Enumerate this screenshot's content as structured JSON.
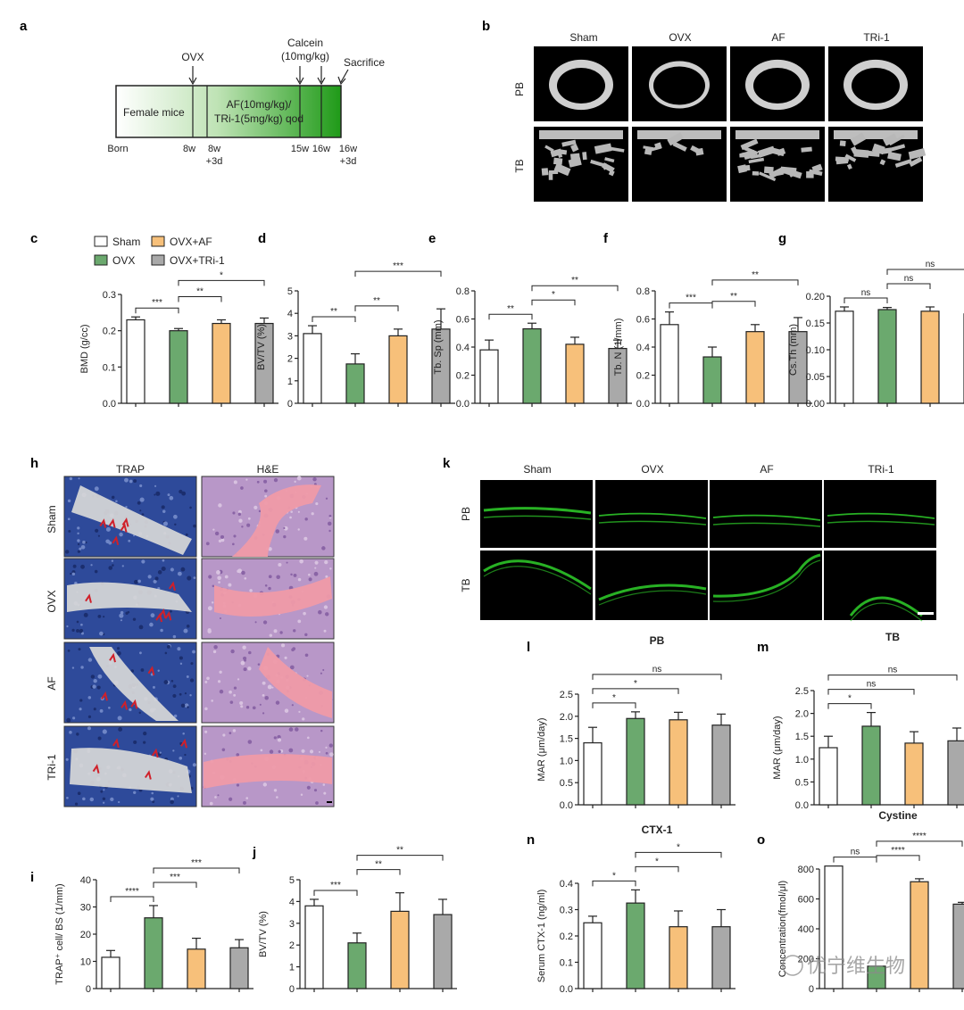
{
  "colors": {
    "sham": "#ffffff",
    "ovx": "#6ba96e",
    "af": "#f7c07a",
    "tri1": "#a9a9a9",
    "timeline_start": "#ffffff",
    "timeline_end": "#27a11f",
    "fluorescence": "#2fd02a"
  },
  "panel_labels": [
    "a",
    "b",
    "c",
    "d",
    "e",
    "f",
    "g",
    "h",
    "i",
    "j",
    "k",
    "l",
    "m",
    "n",
    "o"
  ],
  "panel_a": {
    "box_left": "Female mice",
    "box_right_line1": "AF(10mg/kg)/",
    "box_right_line2": "TRi-1(5mg/kg) qod",
    "top_ovx": "OVX",
    "top_calcein_1": "Calcein",
    "top_calcein_2": "(10mg/kg)",
    "top_sacrifice": "Sacrifice",
    "ticks": [
      "Born",
      "8w",
      "8w",
      "+3d",
      "15w",
      "16w",
      "16w",
      "+3d"
    ]
  },
  "panel_b": {
    "columns": [
      "Sham",
      "OVX",
      "AF",
      "TRi-1"
    ],
    "rows": [
      "PB",
      "TB"
    ]
  },
  "legend": [
    "Sham",
    "OVX",
    "OVX+AF",
    "OVX+TRi-1"
  ],
  "panel_h": {
    "columns": [
      "TRAP",
      "H&E"
    ],
    "rows": [
      "Sham",
      "OVX",
      "AF",
      "TRi-1"
    ]
  },
  "panel_k": {
    "columns": [
      "Sham",
      "OVX",
      "AF",
      "TRi-1"
    ],
    "rows": [
      "PB",
      "TB"
    ]
  },
  "watermark": "优宁维生物",
  "chart_data": [
    {
      "panel": "c",
      "type": "bar",
      "title": "",
      "ylabel": "BMD (g/cc)",
      "ylim": [
        0,
        0.3
      ],
      "yticks": [
        "0.0",
        "0.1",
        "0.2",
        "0.3"
      ],
      "categories": [
        "Sham",
        "OVX",
        "OVX+AF",
        "OVX+TRi-1"
      ],
      "values": [
        0.23,
        0.2,
        0.22,
        0.22
      ],
      "errors": [
        0.008,
        0.006,
        0.01,
        0.015
      ],
      "sig": [
        {
          "a": 0,
          "b": 1,
          "label": "***"
        },
        {
          "a": 1,
          "b": 2,
          "label": "**"
        },
        {
          "a": 1,
          "b": 3,
          "label": "*"
        }
      ]
    },
    {
      "panel": "d",
      "type": "bar",
      "title": "",
      "ylabel": "BV/TV (%)",
      "ylim": [
        0,
        5
      ],
      "yticks": [
        "0",
        "1",
        "2",
        "3",
        "4",
        "5"
      ],
      "categories": [
        "Sham",
        "OVX",
        "OVX+AF",
        "OVX+TRi-1"
      ],
      "values": [
        3.1,
        1.75,
        3.0,
        3.3
      ],
      "errors": [
        0.35,
        0.45,
        0.3,
        0.9
      ],
      "sig": [
        {
          "a": 0,
          "b": 1,
          "label": "**"
        },
        {
          "a": 1,
          "b": 2,
          "label": "**"
        },
        {
          "a": 1,
          "b": 3,
          "label": "***"
        }
      ]
    },
    {
      "panel": "e",
      "type": "bar",
      "title": "",
      "ylabel": "Tb. Sp (mm)",
      "ylim": [
        0,
        0.8
      ],
      "yticks": [
        "0.0",
        "0.2",
        "0.4",
        "0.6",
        "0.8"
      ],
      "categories": [
        "Sham",
        "OVX",
        "OVX+AF",
        "OVX+TRi-1"
      ],
      "values": [
        0.38,
        0.53,
        0.42,
        0.39
      ],
      "errors": [
        0.07,
        0.04,
        0.05,
        0.06
      ],
      "sig": [
        {
          "a": 0,
          "b": 1,
          "label": "**"
        },
        {
          "a": 1,
          "b": 2,
          "label": "*"
        },
        {
          "a": 1,
          "b": 3,
          "label": "**"
        }
      ]
    },
    {
      "panel": "f",
      "type": "bar",
      "title": "",
      "ylabel": "Tb. N (1/mm)",
      "ylim": [
        0,
        0.8
      ],
      "yticks": [
        "0.0",
        "0.2",
        "0.4",
        "0.6",
        "0.8"
      ],
      "categories": [
        "Sham",
        "OVX",
        "OVX+AF",
        "OVX+TRi-1"
      ],
      "values": [
        0.56,
        0.33,
        0.51,
        0.51
      ],
      "errors": [
        0.09,
        0.07,
        0.05,
        0.1
      ],
      "sig": [
        {
          "a": 0,
          "b": 1,
          "label": "***"
        },
        {
          "a": 1,
          "b": 2,
          "label": "**"
        },
        {
          "a": 1,
          "b": 3,
          "label": "**"
        }
      ]
    },
    {
      "panel": "g",
      "type": "bar",
      "title": "",
      "ylabel": "Cs.Th (mm)",
      "ylim": [
        0,
        0.2
      ],
      "yticks": [
        "0.00",
        "0.05",
        "0.10",
        "0.15",
        "0.20"
      ],
      "categories": [
        "Sham",
        "OVX",
        "OVX+AF",
        "OVX+TRi-1"
      ],
      "values": [
        0.172,
        0.175,
        0.172,
        0.167
      ],
      "errors": [
        0.008,
        0.004,
        0.008,
        0.01
      ],
      "sig": [
        {
          "a": 0,
          "b": 1,
          "label": "ns"
        },
        {
          "a": 1,
          "b": 2,
          "label": "ns"
        },
        {
          "a": 1,
          "b": 3,
          "label": "ns"
        }
      ]
    },
    {
      "panel": "i",
      "type": "bar",
      "title": "",
      "ylabel": "TRAP⁺ cell/ BS (1/mm)",
      "ylim": [
        0,
        40
      ],
      "yticks": [
        "0",
        "10",
        "20",
        "30",
        "40"
      ],
      "categories": [
        "Sham",
        "OVX",
        "OVX+AF",
        "OVX+TRi-1"
      ],
      "values": [
        11.5,
        26,
        14.5,
        15
      ],
      "errors": [
        2.5,
        4.5,
        4,
        3
      ],
      "sig": [
        {
          "a": 0,
          "b": 1,
          "label": "****"
        },
        {
          "a": 1,
          "b": 2,
          "label": "***"
        },
        {
          "a": 1,
          "b": 3,
          "label": "***"
        }
      ]
    },
    {
      "panel": "j",
      "type": "bar",
      "title": "",
      "ylabel": "BV/TV (%)",
      "ylim": [
        0,
        5
      ],
      "yticks": [
        "0",
        "1",
        "2",
        "3",
        "4",
        "5"
      ],
      "categories": [
        "Sham",
        "OVX",
        "OVX+AF",
        "OVX+TRi-1"
      ],
      "values": [
        3.8,
        2.1,
        3.55,
        3.4
      ],
      "errors": [
        0.3,
        0.45,
        0.85,
        0.7
      ],
      "sig": [
        {
          "a": 0,
          "b": 1,
          "label": "***"
        },
        {
          "a": 1,
          "b": 2,
          "label": "**"
        },
        {
          "a": 1,
          "b": 3,
          "label": "**"
        }
      ]
    },
    {
      "panel": "l",
      "type": "bar",
      "title": "PB",
      "ylabel": "MAR (μm/day)",
      "ylim": [
        0,
        2.5
      ],
      "yticks": [
        "0.0",
        "0.5",
        "1.0",
        "1.5",
        "2.0",
        "2.5"
      ],
      "categories": [
        "Sham",
        "OVX",
        "OVX+AF",
        "OVX+TRi-1"
      ],
      "values": [
        1.4,
        1.95,
        1.92,
        1.8
      ],
      "errors": [
        0.35,
        0.15,
        0.17,
        0.25
      ],
      "sig": [
        {
          "a": 0,
          "b": 1,
          "label": "*"
        },
        {
          "a": 0,
          "b": 2,
          "label": "*"
        },
        {
          "a": 0,
          "b": 3,
          "label": "ns"
        }
      ]
    },
    {
      "panel": "m",
      "type": "bar",
      "title": "TB",
      "ylabel": "MAR (μm/day)",
      "ylim": [
        0,
        2.5
      ],
      "yticks": [
        "0.0",
        "0.5",
        "1.0",
        "1.5",
        "2.0",
        "2.5"
      ],
      "categories": [
        "Sham",
        "OVX",
        "OVX+AF",
        "OVX+TRi-1"
      ],
      "values": [
        1.25,
        1.72,
        1.35,
        1.4
      ],
      "errors": [
        0.25,
        0.3,
        0.25,
        0.28
      ],
      "sig": [
        {
          "a": 0,
          "b": 1,
          "label": "*"
        },
        {
          "a": 0,
          "b": 2,
          "label": "ns"
        },
        {
          "a": 0,
          "b": 3,
          "label": "ns"
        }
      ]
    },
    {
      "panel": "n",
      "type": "bar",
      "title": "CTX-1",
      "ylabel": "Serum CTX-1 (ng/ml)",
      "ylim": [
        0,
        0.4
      ],
      "yticks": [
        "0.0",
        "0.1",
        "0.2",
        "0.3",
        "0.4"
      ],
      "categories": [
        "Sham",
        "OVX",
        "OVX+AF",
        "OVX+TRi-1"
      ],
      "values": [
        0.25,
        0.325,
        0.235,
        0.235
      ],
      "errors": [
        0.025,
        0.05,
        0.06,
        0.065
      ],
      "sig": [
        {
          "a": 0,
          "b": 1,
          "label": "*"
        },
        {
          "a": 1,
          "b": 2,
          "label": "*"
        },
        {
          "a": 1,
          "b": 3,
          "label": "*"
        }
      ]
    },
    {
      "panel": "o",
      "type": "bar",
      "title": "Cystine",
      "ylabel": "Concentration(fmol/μl)",
      "ylim": [
        0,
        800
      ],
      "yticks": [
        "0",
        "200",
        "400",
        "600",
        "800"
      ],
      "categories": [
        "Sham",
        "OVX",
        "OVX+AF",
        "OVX+TRi-1"
      ],
      "values": [
        820,
        150,
        715,
        565
      ],
      "errors": [
        0,
        0,
        20,
        12
      ],
      "sig": [
        {
          "a": 0,
          "b": 1,
          "label": "ns"
        },
        {
          "a": 1,
          "b": 2,
          "label": "****"
        },
        {
          "a": 1,
          "b": 3,
          "label": "****"
        }
      ]
    }
  ]
}
